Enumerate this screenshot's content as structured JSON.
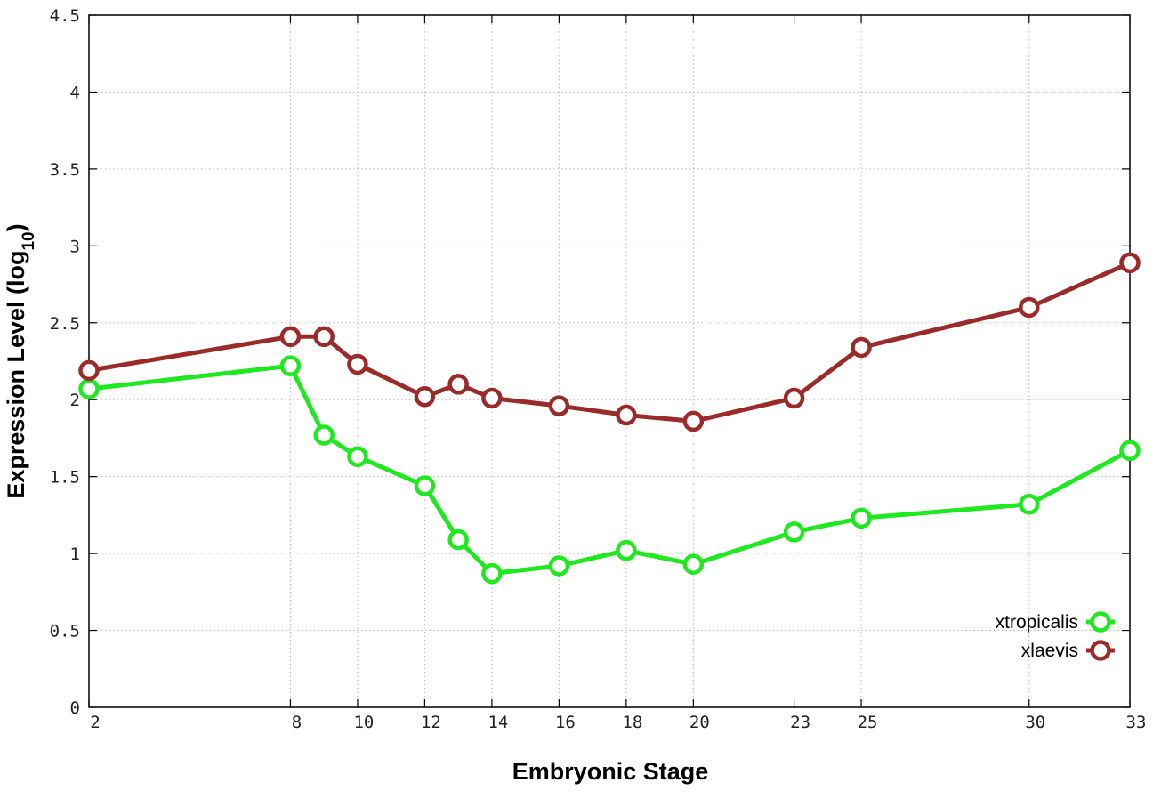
{
  "chart_data": {
    "type": "line",
    "title": "",
    "xlabel": "Embryonic Stage",
    "ylabel": {
      "main": "Expression Level (log",
      "sub": "10",
      "close": ")"
    },
    "x": [
      2,
      8,
      9,
      10,
      12,
      13,
      14,
      16,
      18,
      20,
      23,
      25,
      30,
      33
    ],
    "x_ticks": [
      2,
      8,
      10,
      12,
      14,
      16,
      18,
      20,
      23,
      25,
      30,
      33
    ],
    "x_range": [
      2,
      33
    ],
    "y_ticks": [
      0,
      0.5,
      1,
      1.5,
      2,
      2.5,
      3,
      3.5,
      4,
      4.5
    ],
    "y_tick_labels": [
      "0",
      "0.5",
      "1",
      "1.5",
      "2",
      "2.5",
      "3",
      "3.5",
      "4",
      "4.5"
    ],
    "ylim": [
      0,
      4.5
    ],
    "grid": true,
    "legend_position": "bottom-right",
    "series": [
      {
        "name": "xtropicalis",
        "color": "#1ee81e",
        "values": [
          2.07,
          2.22,
          1.77,
          1.63,
          1.44,
          1.09,
          0.87,
          0.92,
          1.02,
          0.93,
          1.14,
          1.23,
          1.32,
          1.67
        ]
      },
      {
        "name": "xlaevis",
        "color": "#9b2a2a",
        "values": [
          2.19,
          2.41,
          2.41,
          2.23,
          2.02,
          2.1,
          2.01,
          1.96,
          1.9,
          1.86,
          2.01,
          2.34,
          2.6,
          2.89
        ]
      }
    ]
  }
}
